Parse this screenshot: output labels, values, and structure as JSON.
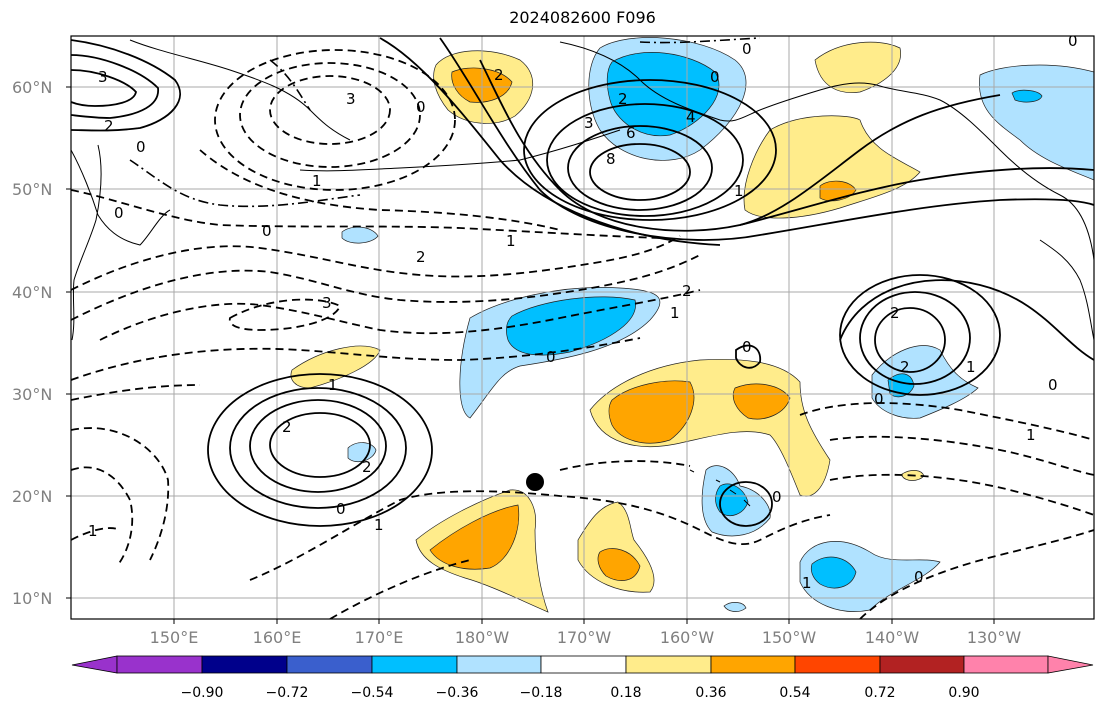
{
  "title": "2024082600 F096",
  "lat_ticks": [
    "10°N",
    "20°N",
    "30°N",
    "40°N",
    "50°N",
    "60°N"
  ],
  "lon_ticks": [
    "150°E",
    "160°E",
    "170°E",
    "180°W",
    "170°W",
    "160°W",
    "150°W",
    "140°W",
    "130°W"
  ],
  "colorbar": {
    "colors": [
      "#9932cc",
      "#00008b",
      "#3a5fcd",
      "#00bfff",
      "#b0e2ff",
      "#ffffff",
      "#ffec8b",
      "#ffa500",
      "#ff4500",
      "#b22222",
      "#ff82ab"
    ],
    "tick_labels": [
      "−0.90",
      "−0.72",
      "−0.54",
      "−0.36",
      "−0.18",
      "0.18",
      "0.36",
      "0.54",
      "0.72",
      "0.90"
    ]
  },
  "contour_labels": [
    {
      "text": "3"
    },
    {
      "text": "2"
    },
    {
      "text": "0"
    },
    {
      "text": "1"
    },
    {
      "text": "3"
    },
    {
      "text": "0"
    },
    {
      "text": "2"
    },
    {
      "text": "2"
    },
    {
      "text": "0"
    },
    {
      "text": "4"
    },
    {
      "text": "6"
    },
    {
      "text": "8"
    },
    {
      "text": "3"
    },
    {
      "text": "1"
    },
    {
      "text": "0"
    },
    {
      "text": "0"
    },
    {
      "text": "1"
    },
    {
      "text": "2"
    },
    {
      "text": "3"
    },
    {
      "text": "2"
    },
    {
      "text": "1"
    },
    {
      "text": "0"
    },
    {
      "text": "0"
    },
    {
      "text": "1"
    },
    {
      "text": "2"
    },
    {
      "text": "2"
    },
    {
      "text": "0"
    },
    {
      "text": "1"
    },
    {
      "text": "2"
    },
    {
      "text": "0"
    },
    {
      "text": "2"
    },
    {
      "text": "1"
    },
    {
      "text": "0"
    },
    {
      "text": "0"
    },
    {
      "text": "1"
    },
    {
      "text": "0"
    },
    {
      "text": "1"
    },
    {
      "text": "0"
    },
    {
      "text": "1"
    },
    {
      "text": "0"
    }
  ],
  "marker": {
    "name": "point marker",
    "color": "#000000"
  },
  "colors": {
    "grid": "#a9a9a9",
    "contour": "#000000",
    "coast": "#000000"
  }
}
